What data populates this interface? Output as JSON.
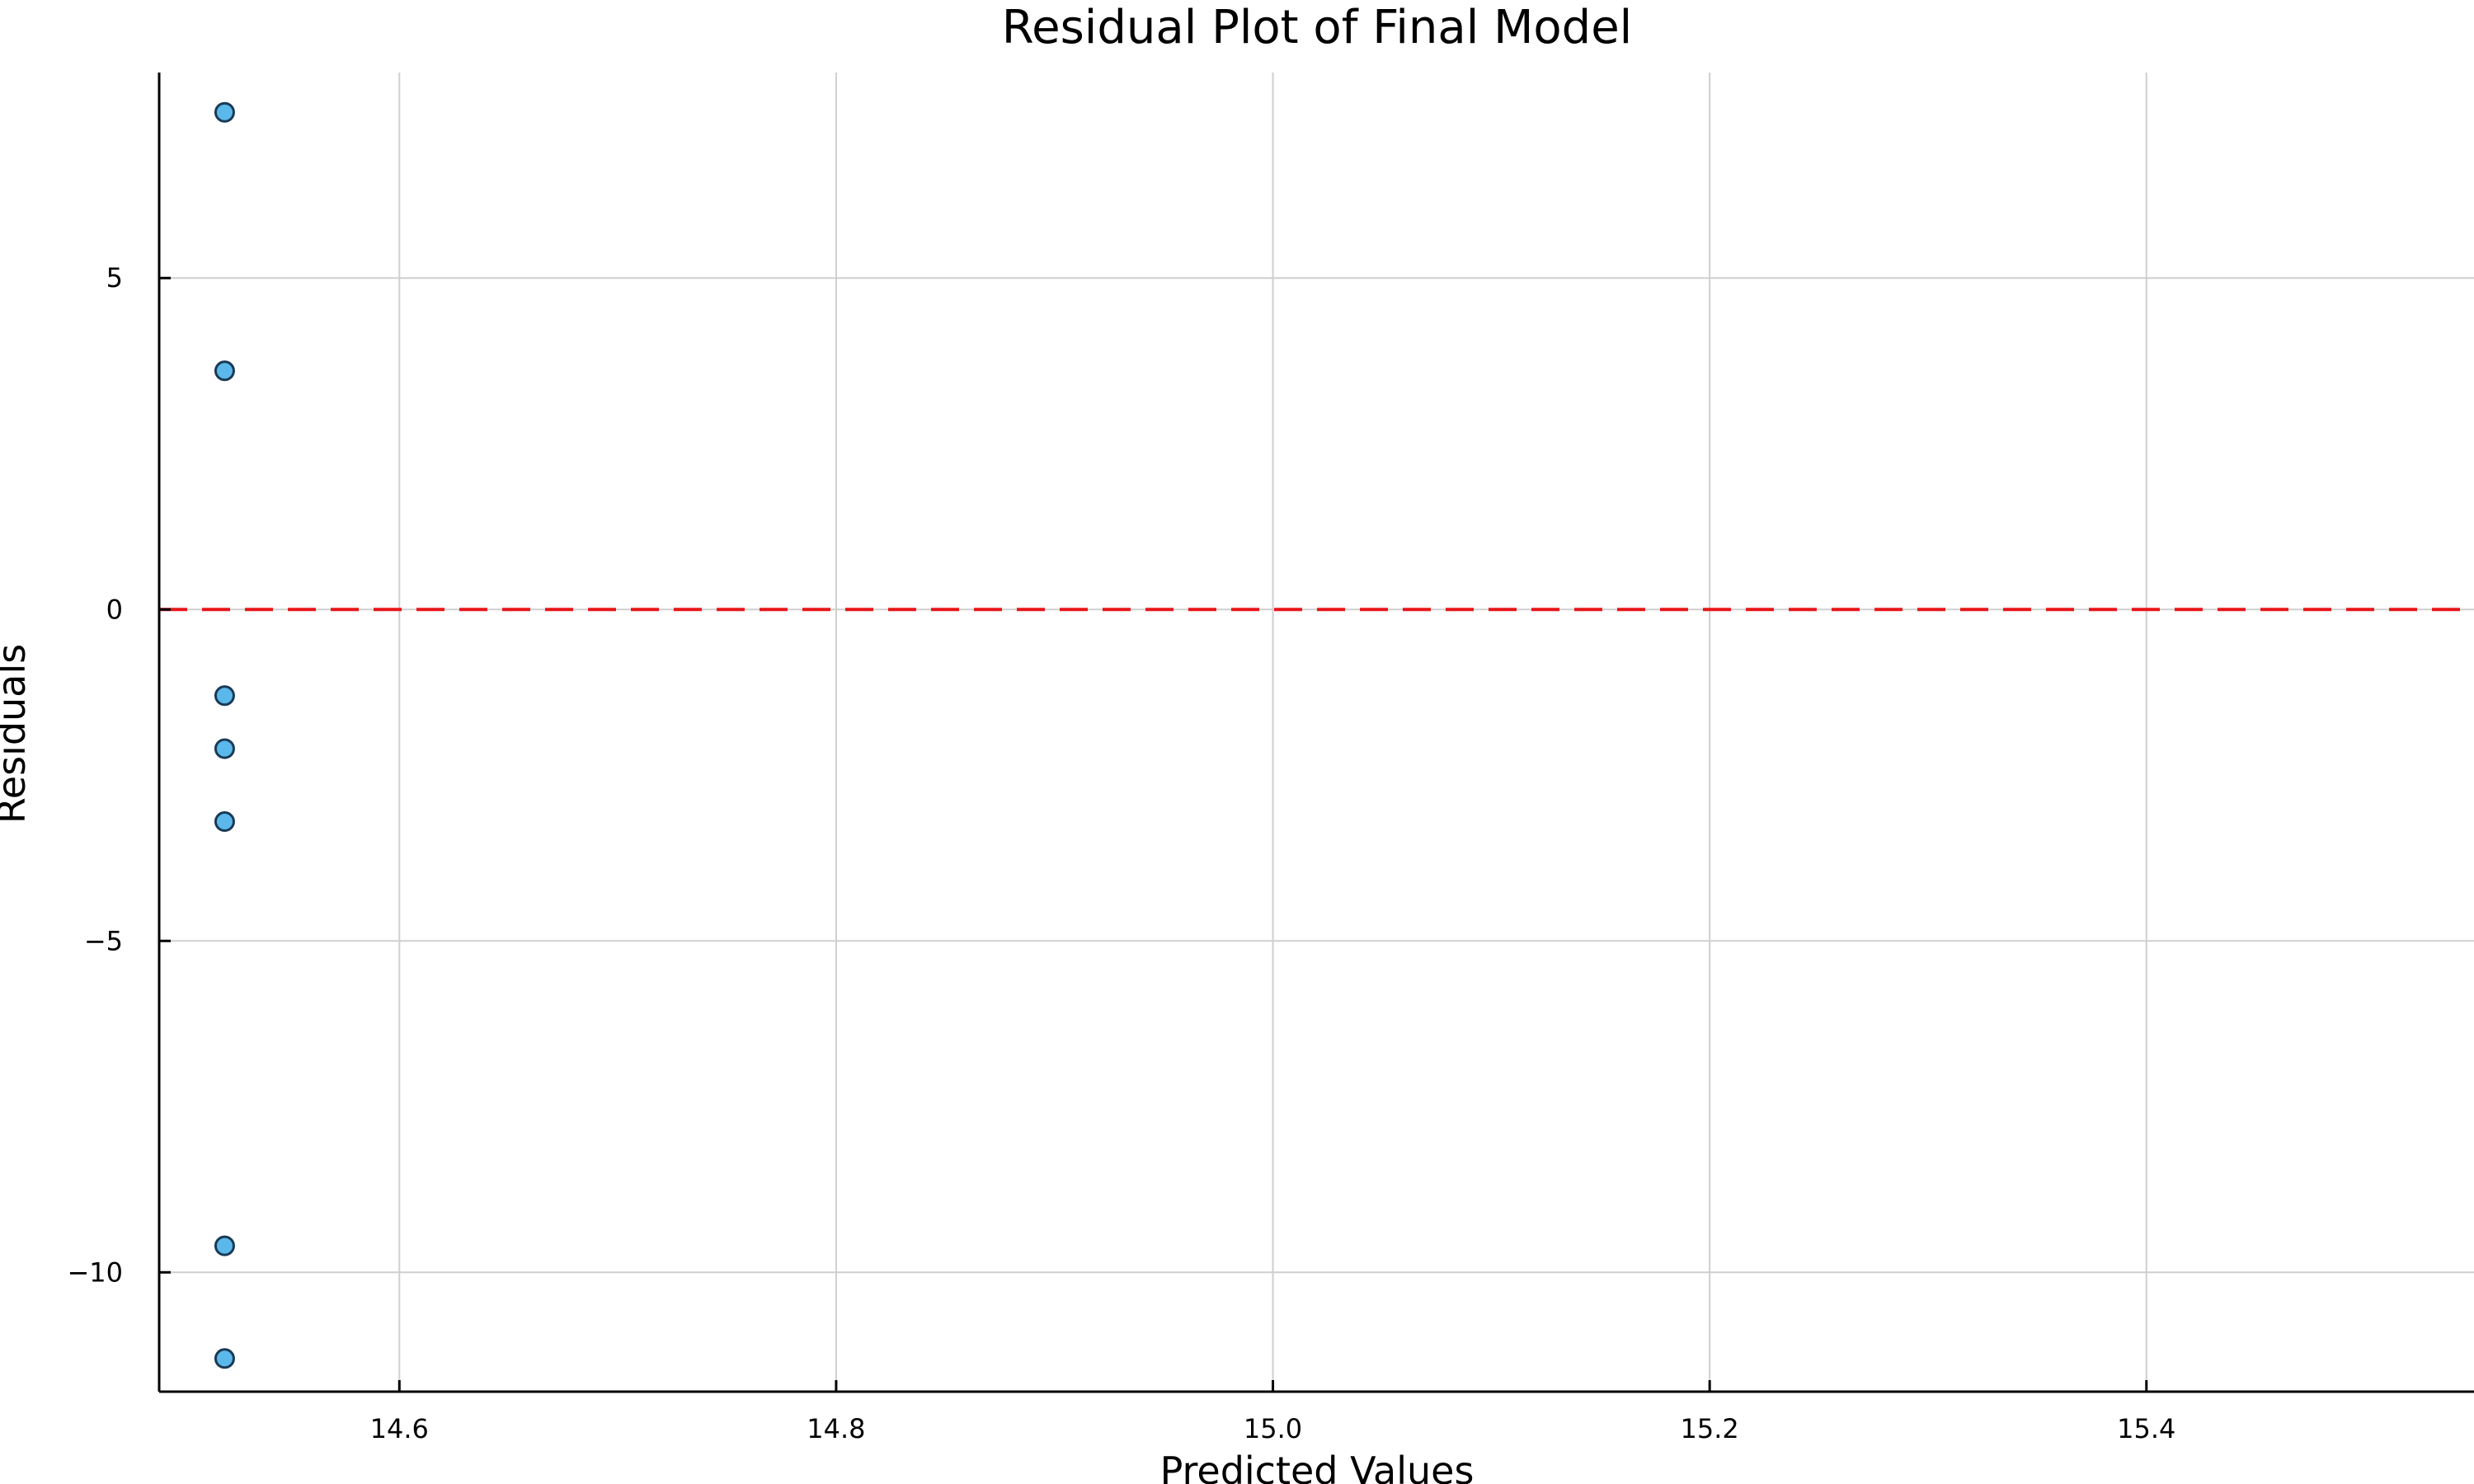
{
  "chart_data": {
    "type": "scatter",
    "title": "Residual Plot of Final Model",
    "xlabel": "Predicted Values",
    "ylabel": "Residuals",
    "xlim": [
      14.49,
      15.55
    ],
    "ylim": [
      -11.8,
      8.1
    ],
    "x_ticks": [
      14.6,
      14.8,
      15.0,
      15.2,
      15.4
    ],
    "x_tick_labels": [
      "14.6",
      "14.8",
      "15.0",
      "15.2",
      "15.4"
    ],
    "y_ticks": [
      -10,
      -5,
      0,
      5
    ],
    "y_tick_labels": [
      "−10",
      "−5",
      "0",
      "5"
    ],
    "grid": true,
    "legend": "none",
    "reference_line": {
      "y": 0,
      "style": "dashed"
    },
    "series": [
      {
        "x": [
          14.52,
          14.52,
          14.52,
          14.52,
          14.52,
          14.52,
          14.52
        ],
        "y": [
          7.5,
          3.6,
          -1.3,
          -2.1,
          -3.2,
          -9.6,
          -11.3
        ]
      }
    ],
    "colors": {
      "point_fill": "#5bb8ea",
      "zero_line": "#e8161a"
    }
  }
}
